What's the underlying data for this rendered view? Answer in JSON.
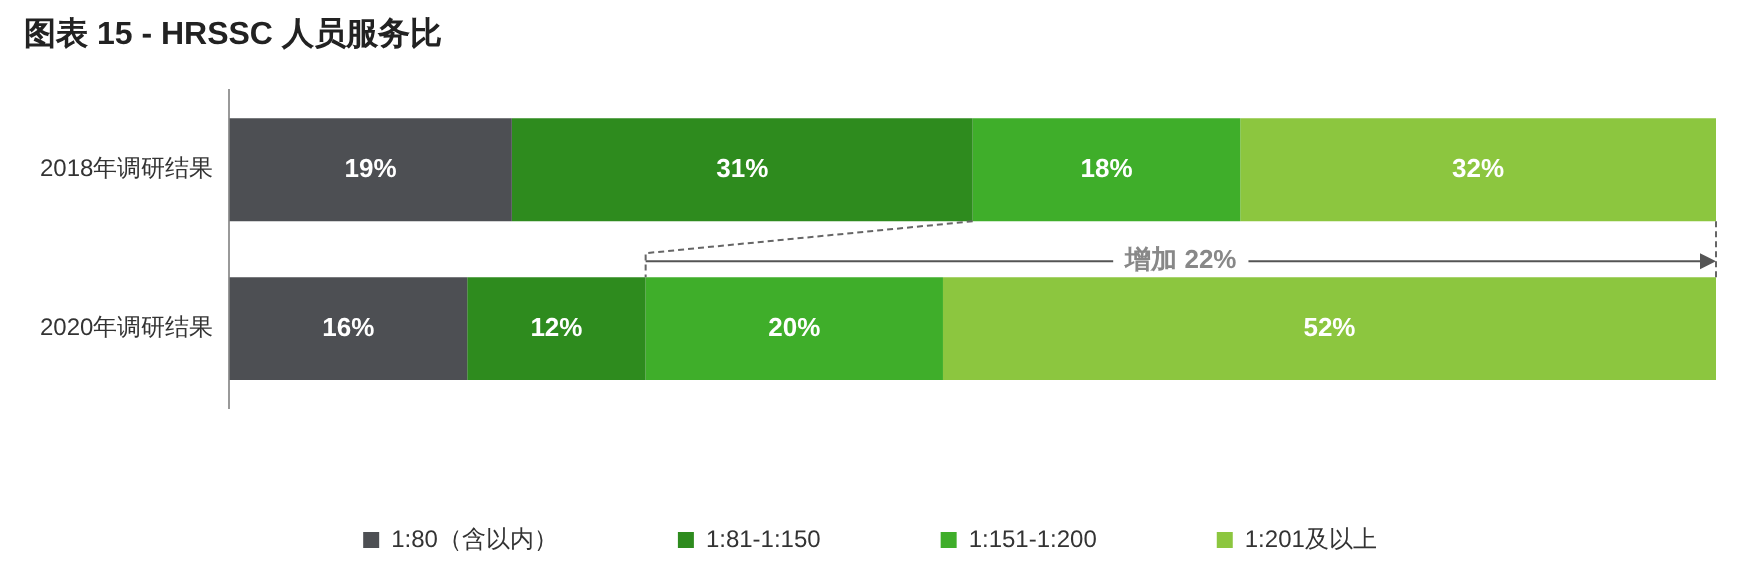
{
  "chart_data": {
    "type": "bar",
    "title": "图表 15 - HRSSC 人员服务比",
    "orientation": "horizontal",
    "stacked": true,
    "legend": "bottom",
    "grid": false,
    "tick_labels": "y",
    "categories": [
      "2018年调研结果",
      "2020年调研结果"
    ],
    "series": [
      {
        "name": "1:80（含以内）",
        "color": "#4d4f53",
        "values": [
          19,
          16
        ],
        "value_labels": [
          "19%",
          "16%"
        ]
      },
      {
        "name": "1:81-1:150",
        "color": "#2e8b1e",
        "values": [
          31,
          12
        ],
        "value_labels": [
          "31%",
          "12%"
        ]
      },
      {
        "name": "1:151-1:200",
        "color": "#3fae2a",
        "values": [
          18,
          20
        ],
        "value_labels": [
          "18%",
          "20%"
        ]
      },
      {
        "name": "1:201及以上",
        "color": "#8cc63f",
        "values": [
          32,
          52
        ],
        "value_labels": [
          "32%",
          "52%"
        ]
      }
    ],
    "annotations": [
      "增加 22%"
    ]
  }
}
